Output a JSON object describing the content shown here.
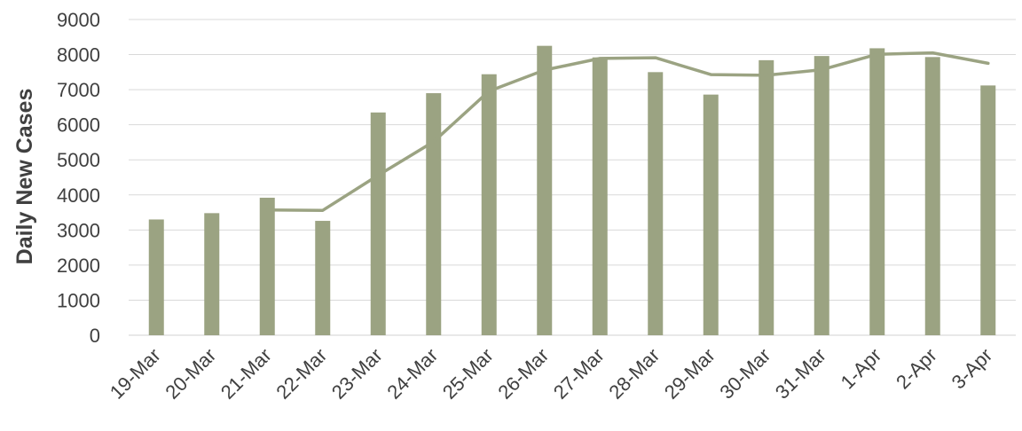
{
  "chart_data": {
    "type": "bar",
    "ylabel": "Daily New Cases",
    "xlabel": "",
    "ylim": [
      0,
      9000
    ],
    "yticks": [
      0,
      1000,
      2000,
      3000,
      4000,
      5000,
      6000,
      7000,
      8000,
      9000
    ],
    "grid": true,
    "categories": [
      "19-Mar",
      "20-Mar",
      "21-Mar",
      "22-Mar",
      "23-Mar",
      "24-Mar",
      "25-Mar",
      "26-Mar",
      "27-Mar",
      "28-Mar",
      "29-Mar",
      "30-Mar",
      "31-Mar",
      "1-Apr",
      "2-Apr",
      "3-Apr"
    ],
    "series": [
      {
        "type": "bar",
        "color": "#9ba382",
        "values": [
          3300,
          3480,
          3920,
          3260,
          6350,
          6900,
          7440,
          8250,
          7920,
          7500,
          6860,
          7840,
          7960,
          8180,
          7930,
          7120
        ]
      },
      {
        "type": "line",
        "color": "#9ba382",
        "values": [
          null,
          null,
          3570,
          3560,
          4560,
          5520,
          6960,
          7560,
          7890,
          7910,
          7430,
          7410,
          7570,
          8010,
          8050,
          7750
        ]
      }
    ]
  }
}
